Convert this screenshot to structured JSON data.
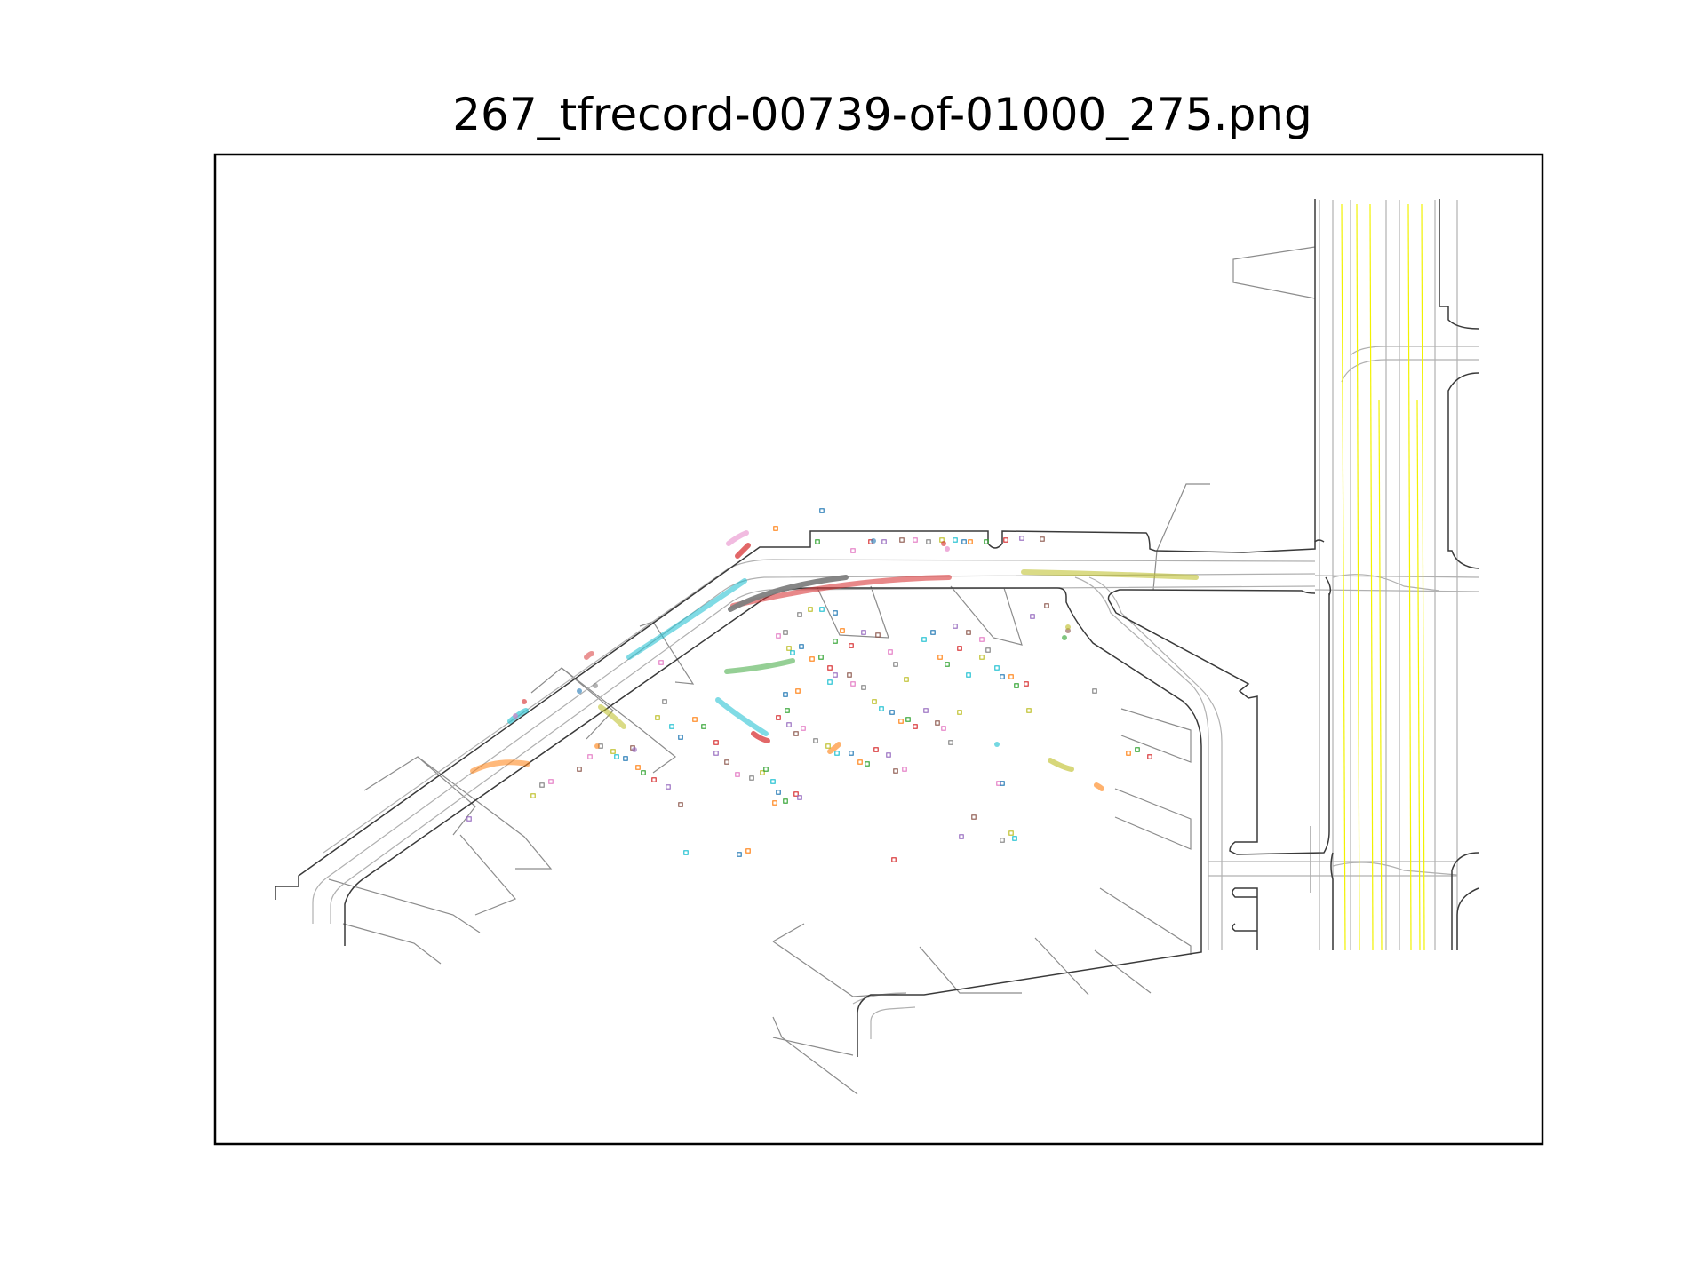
{
  "figure": {
    "title": "267_tfrecord-00739-of-01000_275.png"
  },
  "colors": {
    "road_edge": "#3a3a3a",
    "lane_center": "#b0b0b0",
    "road_line_yellow": "#f2f200",
    "crosswalk": "#8c8c8c",
    "axes_frame": "#000000",
    "agent_palette": [
      "#1f77b4",
      "#ff7f0e",
      "#2ca02c",
      "#d62728",
      "#9467bd",
      "#8c564b",
      "#e377c2",
      "#7f7f7f",
      "#bcbd22",
      "#17becf"
    ]
  },
  "legend": "none",
  "axes": {
    "ticks": "hidden",
    "grid": "off"
  }
}
